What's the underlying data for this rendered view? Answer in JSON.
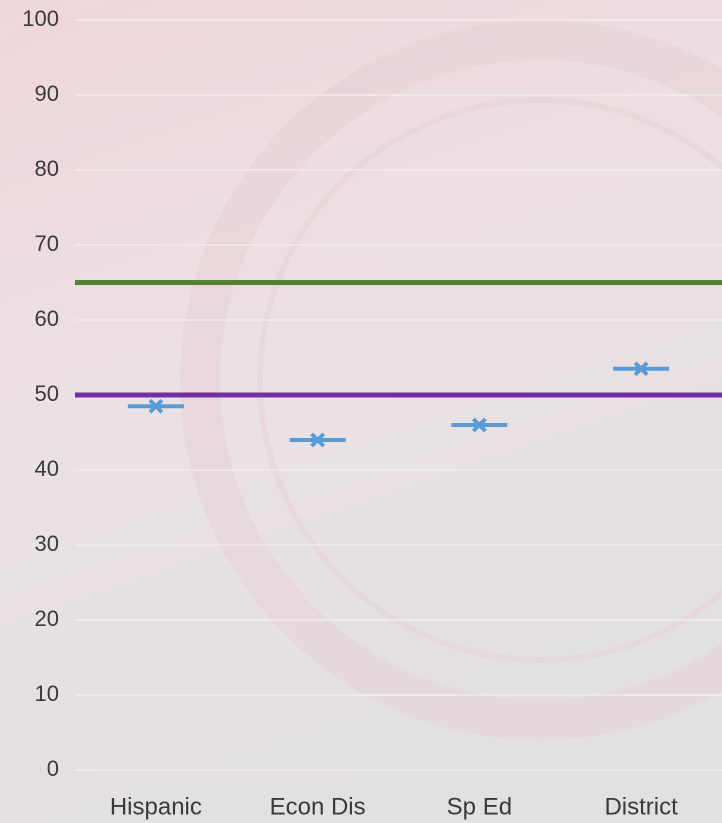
{
  "chart_data": {
    "type": "marker",
    "categories": [
      "Hispanic",
      "Econ Dis",
      "Sp Ed",
      "District"
    ],
    "values": [
      48.5,
      44,
      46,
      53.5
    ],
    "color": "#5b9bd5",
    "reference_lines": [
      {
        "value": 65,
        "color": "#548235"
      },
      {
        "value": 50,
        "color": "#7030a0"
      }
    ],
    "ylim": [
      0,
      100
    ],
    "yticks": [
      0,
      10,
      20,
      30,
      40,
      50,
      60,
      70,
      80,
      90,
      100
    ],
    "grid": true
  }
}
